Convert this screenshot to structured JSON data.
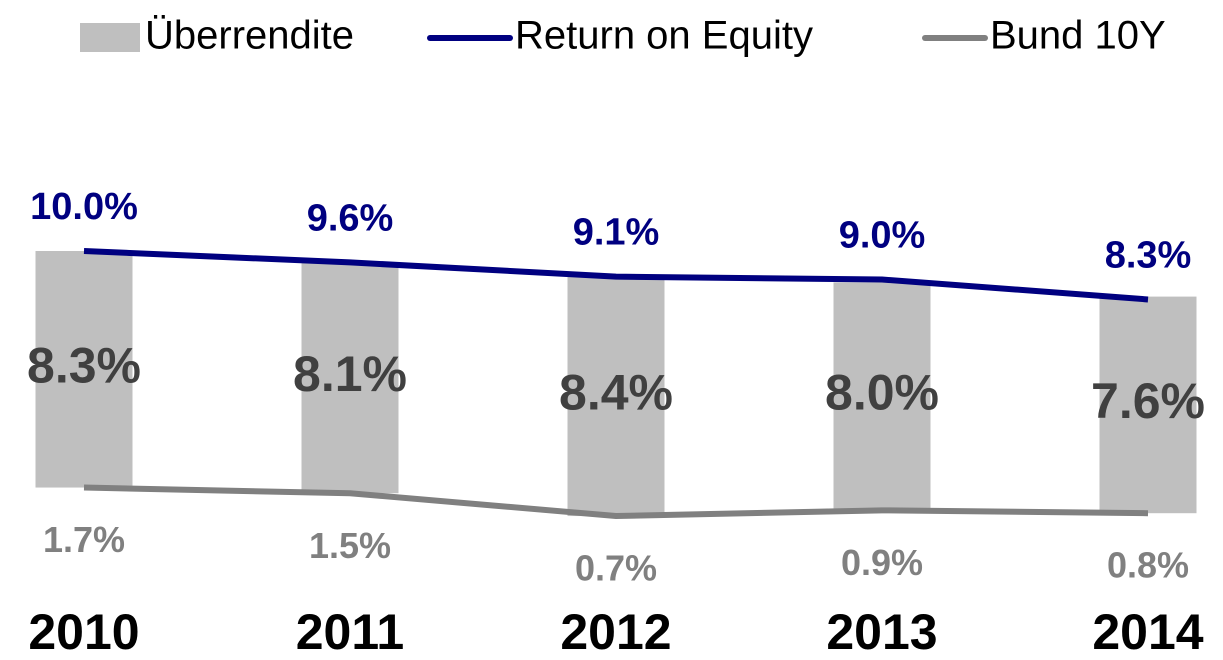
{
  "chart_data": {
    "type": "combo",
    "categories": [
      "2010",
      "2011",
      "2012",
      "2013",
      "2014"
    ],
    "series": [
      {
        "name": "Überrendite",
        "type": "bar",
        "color": "#bfbfbf",
        "values": [
          8.3,
          8.1,
          8.4,
          8.0,
          7.6
        ],
        "value_labels": [
          "8.3%",
          "8.1%",
          "8.4%",
          "8.0%",
          "7.6%"
        ]
      },
      {
        "name": "Return on Equity",
        "type": "line",
        "color": "#000080",
        "values": [
          10.0,
          9.6,
          9.1,
          9.0,
          8.3
        ],
        "value_labels": [
          "10.0%",
          "9.6%",
          "9.1%",
          "9.0%",
          "8.3%"
        ]
      },
      {
        "name": "Bund 10Y",
        "type": "line",
        "color": "#808080",
        "values": [
          1.7,
          1.5,
          0.7,
          0.9,
          0.8
        ],
        "value_labels": [
          "1.7%",
          "1.5%",
          "0.7%",
          "0.9%",
          "0.8%"
        ]
      }
    ],
    "legend": "top"
  }
}
